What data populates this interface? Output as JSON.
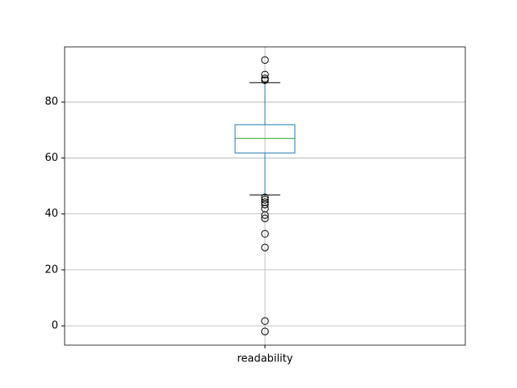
{
  "chart_data": {
    "type": "box",
    "categories": [
      "readability"
    ],
    "boxes": [
      {
        "whislo": 46.8,
        "q1": 61.8,
        "median": 67.0,
        "q3": 71.9,
        "whishi": 86.9,
        "fliers": [
          95.0,
          89.8,
          88.4,
          87.8,
          45.9,
          45.1,
          44.2,
          43.4,
          41.9,
          39.6,
          38.4,
          32.9,
          28.0,
          1.7,
          -2.0
        ]
      }
    ],
    "box_color": "#1f77b4",
    "median_color": "#2ca02c",
    "cap_color": "#000000",
    "flier_color": "#000000",
    "ylim": [
      -6.9,
      99.7
    ],
    "yticks": [
      0,
      20,
      40,
      60,
      80
    ],
    "grid": true
  }
}
